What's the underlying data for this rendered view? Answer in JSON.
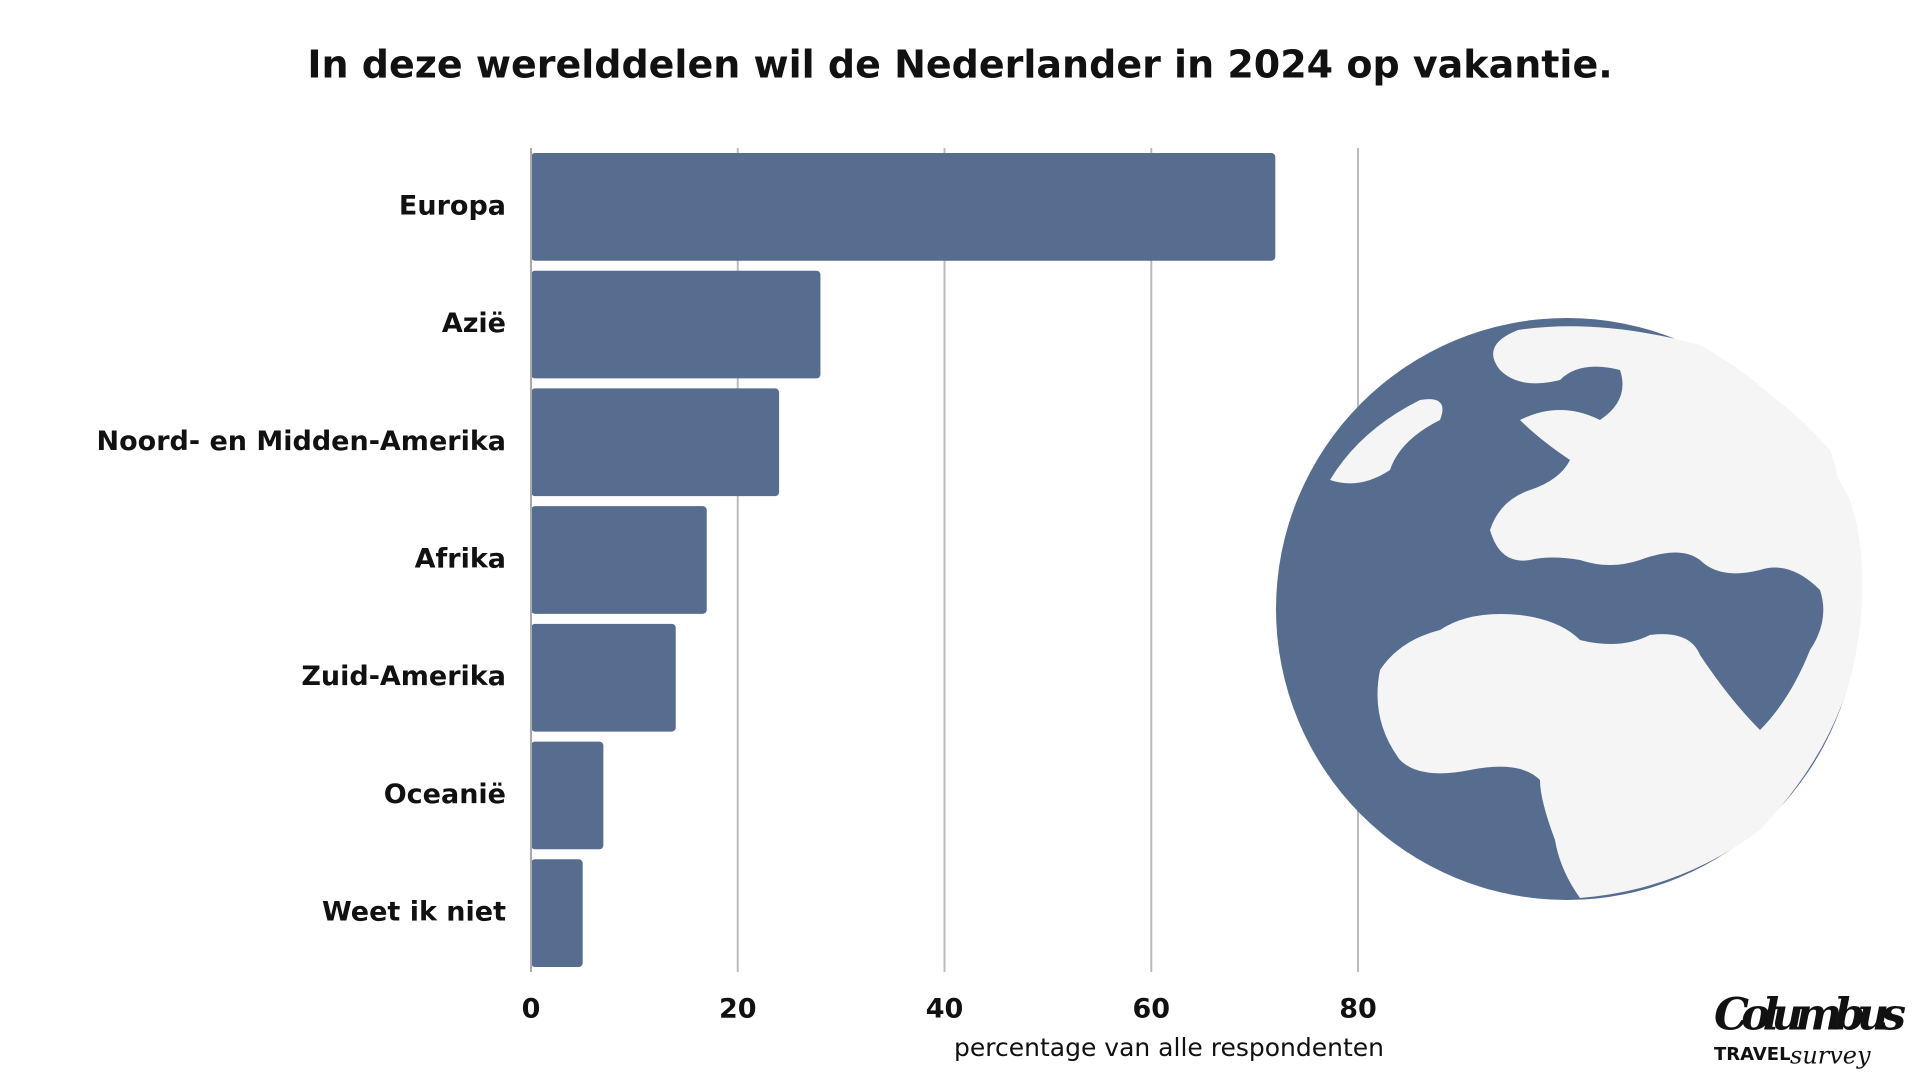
{
  "chart_data": {
    "type": "bar",
    "orientation": "horizontal",
    "title": "In deze werelddelen wil de Nederlander in 2024 op vakantie.",
    "x_label": "percentage van alle respondenten",
    "categories": [
      "Europa",
      "Azië",
      "Noord- en Midden-Amerika",
      "Afrika",
      "Zuid-Amerika",
      "Oceanië",
      "Weet ik niet"
    ],
    "values": [
      72,
      28,
      24,
      17,
      14,
      7,
      5
    ],
    "color": "#566d8f",
    "xlim": [
      0,
      80
    ],
    "xticks": [
      0,
      20,
      40,
      60,
      80
    ],
    "grid": true
  },
  "logo": {
    "name": "Columbus",
    "line1": "TRAVEL",
    "line2": "survey"
  }
}
